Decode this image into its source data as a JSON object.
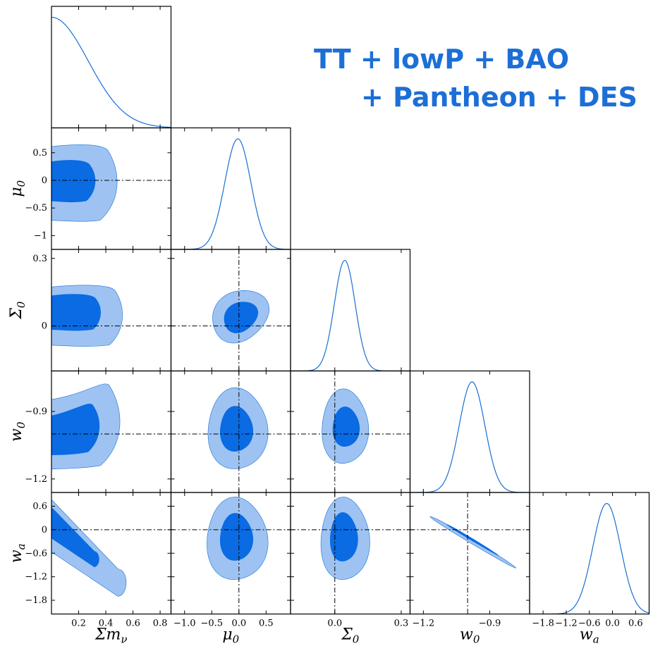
{
  "colors": {
    "line": "#1a6fd4",
    "inner": "#0a6be3",
    "outer": "#9ec3f2",
    "text_accent": "#1c6fd6"
  },
  "legend": {
    "line1": "TT + lowP + BAO",
    "line2": "+ Pantheon + DES"
  },
  "chart_data": {
    "type": "triangle-corner",
    "params": [
      {
        "key": "mnu",
        "label_main": "Σm",
        "label_sub": "ν",
        "range": [
          0.0,
          0.88
        ],
        "ticks": [
          0.2,
          0.4,
          0.6,
          0.8
        ],
        "tick_labels": [
          "0.2",
          "0.4",
          "0.6",
          "0.8"
        ],
        "fiducial": null
      },
      {
        "key": "mu0",
        "label_main": "μ",
        "label_sub": "0",
        "range": [
          -1.25,
          0.95
        ],
        "ticks": [
          -1.0,
          -0.5,
          0.0,
          0.5
        ],
        "tick_labels": [
          "−1.0",
          "−0.5",
          "0.0",
          "0.5"
        ],
        "fiducial": 0.0
      },
      {
        "key": "Sigma0",
        "label_main": "Σ",
        "label_sub": "0",
        "range": [
          -0.2,
          0.34
        ],
        "ticks": [
          0.0,
          0.3
        ],
        "tick_labels": [
          "0.0",
          "0.3"
        ],
        "fiducial": 0.0
      },
      {
        "key": "w0",
        "label_main": "w",
        "label_sub": "0",
        "range": [
          -1.26,
          -0.72
        ],
        "ticks": [
          -1.2,
          -0.9
        ],
        "tick_labels": [
          "−1.2",
          "−0.9"
        ],
        "fiducial": -1.0
      },
      {
        "key": "wa",
        "label_main": "w",
        "label_sub": "a",
        "range": [
          -2.15,
          0.95
        ],
        "ticks": [
          -1.8,
          -1.2,
          -0.6,
          0.0,
          0.6
        ],
        "tick_labels": [
          "−1.8",
          "−1.2",
          "−0.6",
          "0.0",
          "0.6"
        ],
        "fiducial": 0.0
      }
    ],
    "y_tick_labels": {
      "mu0": {
        "ticks": [
          0.5,
          0.0,
          -0.5,
          -1.0
        ],
        "labels": [
          "0.5",
          "0",
          "−0.5",
          "−1"
        ]
      },
      "Sigma0": {
        "ticks": [
          0.3,
          0.0
        ],
        "labels": [
          "0.3",
          "0"
        ]
      },
      "w0": {
        "ticks": [
          -0.9,
          -1.2
        ],
        "labels": [
          "−0.9",
          "−1.2"
        ]
      },
      "wa": {
        "ticks": [
          0.6,
          0.0,
          -0.6,
          -1.2,
          -1.8
        ],
        "labels": [
          "0.6",
          "0",
          "−0.6",
          "−1.2",
          "−1.8"
        ]
      }
    },
    "marginals": {
      "mnu": {
        "kind": "halfgauss",
        "mean": 0.0,
        "sigma": 0.27
      },
      "mu0": {
        "kind": "gauss",
        "mean": -0.02,
        "sigma": 0.24
      },
      "Sigma0": {
        "kind": "gauss",
        "mean": 0.045,
        "sigma": 0.047
      },
      "w0": {
        "kind": "gauss",
        "mean": -0.98,
        "sigma": 0.058
      },
      "wa": {
        "kind": "gauss",
        "mean": -0.15,
        "sigma": 0.36
      }
    },
    "contours": [
      {
        "x": "mnu",
        "y": "mu0",
        "inner": {
          "x0": -0.05,
          "x1": 0.32,
          "y0": -0.37,
          "y1": 0.32
        },
        "outer": {
          "x0": -0.05,
          "x1": 0.48,
          "y0": -0.72,
          "y1": 0.6
        }
      },
      {
        "x": "mnu",
        "y": "Sigma0",
        "inner": {
          "x0": -0.05,
          "x1": 0.36,
          "y0": -0.015,
          "y1": 0.13
        },
        "outer": {
          "x0": -0.05,
          "x1": 0.52,
          "y0": -0.085,
          "y1": 0.17
        }
      },
      {
        "x": "mu0",
        "y": "Sigma0",
        "inner": {
          "cx": 0.03,
          "cy": 0.04,
          "rx": 0.33,
          "ry": 0.063,
          "rot": -35
        },
        "outer": {
          "cx": 0.02,
          "cy": 0.045,
          "rx": 0.55,
          "ry": 0.108,
          "rot": -35
        }
      },
      {
        "x": "mnu",
        "y": "w0",
        "inner": {
          "x0": -0.05,
          "x1": 0.35,
          "y0": -1.08,
          "y1": -0.86,
          "tilt": 0.12
        },
        "outer": {
          "x0": -0.05,
          "x1": 0.5,
          "y0": -1.14,
          "y1": -0.77,
          "tilt": 0.15
        }
      },
      {
        "x": "mu0",
        "y": "w0",
        "inner": {
          "cx": -0.05,
          "cy": -0.98,
          "rx": 0.3,
          "ry": 0.1,
          "rot": 0
        },
        "outer": {
          "cx": -0.03,
          "cy": -0.98,
          "rx": 0.55,
          "ry": 0.18,
          "rot": 0
        }
      },
      {
        "x": "Sigma0",
        "y": "w0",
        "inner": {
          "cx": 0.05,
          "cy": -0.97,
          "rx": 0.06,
          "ry": 0.088,
          "rot": 0
        },
        "outer": {
          "cx": 0.045,
          "cy": -0.97,
          "rx": 0.105,
          "ry": 0.165,
          "rot": 0
        }
      },
      {
        "x": "mnu",
        "y": "wa",
        "inner": {
          "band": true,
          "x0": -0.05,
          "x1": 0.35,
          "y_top0": 0.75,
          "y_top1": -0.55,
          "y_bot0": -0.1,
          "y_bot1": -0.95
        },
        "outer": {
          "band": true,
          "x0": -0.05,
          "x1": 0.55,
          "y_top0": 0.95,
          "y_top1": -1.0,
          "y_bot0": -0.45,
          "y_bot1": -1.7
        }
      },
      {
        "x": "mu0",
        "y": "wa",
        "inner": {
          "cx": -0.05,
          "cy": -0.2,
          "rx": 0.3,
          "ry": 0.6,
          "rot": 0
        },
        "outer": {
          "cx": -0.04,
          "cy": -0.25,
          "rx": 0.56,
          "ry": 1.05,
          "rot": 0
        }
      },
      {
        "x": "Sigma0",
        "y": "wa",
        "inner": {
          "cx": 0.04,
          "cy": -0.2,
          "rx": 0.062,
          "ry": 0.62,
          "rot": 0
        },
        "outer": {
          "cx": 0.045,
          "cy": -0.25,
          "rx": 0.11,
          "ry": 1.05,
          "rot": 0
        }
      },
      {
        "x": "w0",
        "y": "wa",
        "inner": {
          "cx": -0.98,
          "cy": -0.25,
          "rx": 0.135,
          "ry": 0.025,
          "rot": 31
        },
        "outer": {
          "cx": -0.98,
          "cy": -0.3,
          "rx": 0.225,
          "ry": 0.055,
          "rot": 31
        }
      }
    ]
  }
}
